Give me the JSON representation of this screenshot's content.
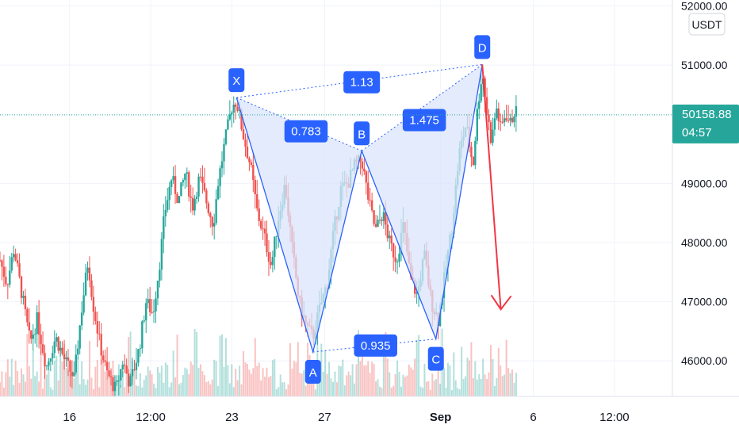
{
  "currency_badge": "USDT",
  "colors": {
    "up": "#26a69a",
    "down": "#ef5350",
    "pattern_fill": "#dbe4fb",
    "pattern_line": "#2962ff",
    "arrow": "#f23645",
    "price_badge": "#26a69a"
  },
  "current_price": {
    "value": 50158.88,
    "label": "50158.88",
    "countdown": "04:57"
  },
  "chart_data": {
    "type": "candlestick",
    "ylim": [
      45400,
      52100
    ],
    "y_ticks": [
      "52000.00",
      "51000.00",
      "49000.00",
      "48000.00",
      "47000.00",
      "46000.00"
    ],
    "y_tick_values": [
      52000,
      51000,
      49000,
      48000,
      47000,
      46000
    ],
    "x_ticks": [
      "16",
      "12:00",
      "23",
      "27",
      "Sep",
      "6",
      "12:00"
    ],
    "x_tick_days": [
      16,
      19.5,
      23,
      27,
      32,
      36,
      39.5
    ],
    "x_range_days": [
      13,
      42
    ],
    "pattern": {
      "points": [
        {
          "label": "X",
          "day": 23.2,
          "price": 50450
        },
        {
          "label": "A",
          "day": 26.5,
          "price": 46150
        },
        {
          "label": "B",
          "day": 28.6,
          "price": 49550
        },
        {
          "label": "C",
          "day": 31.8,
          "price": 46370
        },
        {
          "label": "D",
          "day": 33.8,
          "price": 51010
        }
      ],
      "ratios": [
        {
          "text": "0.783",
          "day": 26.2,
          "price": 49880
        },
        {
          "text": "1.13",
          "day": 28.6,
          "price": 50710
        },
        {
          "text": "1.475",
          "day": 31.3,
          "price": 50070
        },
        {
          "text": "0.935",
          "day": 29.2,
          "price": 46260
        }
      ],
      "projection": {
        "from_day": 33.8,
        "from_price": 51010,
        "to_day": 34.6,
        "to_price": 46870
      }
    },
    "price_path": [
      [
        13.0,
        47700
      ],
      [
        13.3,
        47300
      ],
      [
        13.6,
        47900
      ],
      [
        14.0,
        47000
      ],
      [
        14.3,
        46300
      ],
      [
        14.6,
        46700
      ],
      [
        15.0,
        45900
      ],
      [
        15.4,
        46400
      ],
      [
        15.8,
        46000
      ],
      [
        16.2,
        45700
      ],
      [
        16.5,
        46800
      ],
      [
        16.8,
        47700
      ],
      [
        17.0,
        47000
      ],
      [
        17.3,
        46300
      ],
      [
        17.6,
        45800
      ],
      [
        18.0,
        45500
      ],
      [
        18.3,
        46000
      ],
      [
        18.6,
        45600
      ],
      [
        19.0,
        46200
      ],
      [
        19.3,
        47000
      ],
      [
        19.6,
        46800
      ],
      [
        19.9,
        47700
      ],
      [
        20.1,
        48500
      ],
      [
        20.4,
        49100
      ],
      [
        20.7,
        48700
      ],
      [
        21.0,
        49200
      ],
      [
        21.3,
        48600
      ],
      [
        21.6,
        49100
      ],
      [
        21.9,
        48700
      ],
      [
        22.2,
        48300
      ],
      [
        22.4,
        49000
      ],
      [
        22.7,
        49700
      ],
      [
        23.0,
        50300
      ],
      [
        23.2,
        50400
      ],
      [
        23.5,
        49800
      ],
      [
        23.8,
        49300
      ],
      [
        24.1,
        48500
      ],
      [
        24.4,
        48100
      ],
      [
        24.7,
        47600
      ],
      [
        25.0,
        48400
      ],
      [
        25.3,
        49000
      ],
      [
        25.6,
        47900
      ],
      [
        25.9,
        47000
      ],
      [
        26.2,
        46600
      ],
      [
        26.5,
        46400
      ],
      [
        26.8,
        46900
      ],
      [
        27.1,
        47300
      ],
      [
        27.4,
        48200
      ],
      [
        27.7,
        48900
      ],
      [
        28.0,
        49000
      ],
      [
        28.3,
        49300
      ],
      [
        28.6,
        49400
      ],
      [
        28.9,
        48700
      ],
      [
        29.2,
        48200
      ],
      [
        29.5,
        48500
      ],
      [
        29.8,
        48000
      ],
      [
        30.1,
        47700
      ],
      [
        30.4,
        48300
      ],
      [
        30.7,
        47400
      ],
      [
        31.0,
        47100
      ],
      [
        31.3,
        47800
      ],
      [
        31.6,
        47000
      ],
      [
        31.9,
        46700
      ],
      [
        32.2,
        47500
      ],
      [
        32.5,
        48300
      ],
      [
        32.8,
        49500
      ],
      [
        33.1,
        50000
      ],
      [
        33.4,
        49300
      ],
      [
        33.6,
        50300
      ],
      [
        33.8,
        50900
      ],
      [
        34.0,
        50200
      ],
      [
        34.2,
        49700
      ],
      [
        34.4,
        50300
      ],
      [
        34.6,
        49900
      ],
      [
        34.8,
        50200
      ],
      [
        35.0,
        50000
      ],
      [
        35.2,
        50250
      ],
      [
        35.3,
        50160
      ]
    ]
  }
}
